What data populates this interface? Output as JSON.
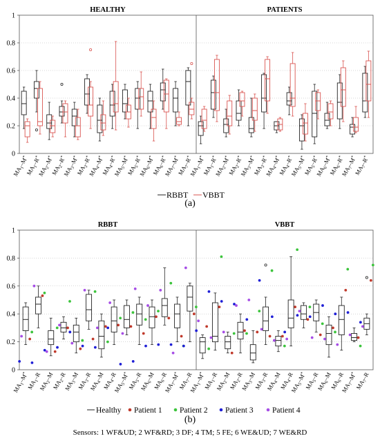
{
  "figure": {
    "sensors_note": "Sensors: 1 WF&UD; 2 WF&RD; 3 DF; 4 TM; 5 FE; 6 WE&UD; 7 WE&RD",
    "panel_a_label": "(a)",
    "panel_b_label": "(b)"
  },
  "colors": {
    "rbbt": "#222222",
    "vbbt": "#d9534f",
    "healthy": "#222222",
    "patient1": "#c0392b",
    "patient2": "#3cc43c",
    "patient3": "#1f1fd6",
    "patient4": "#a64de6",
    "grid": "#999999"
  },
  "chart_data": [
    {
      "type": "box",
      "panel": "a",
      "subplot_titles": [
        "HEALTHY",
        "PATIENTS"
      ],
      "ylim": [
        0,
        1
      ],
      "yticks": [
        "0",
        "0.2",
        "0.4",
        "0.6",
        "0.8",
        "1"
      ],
      "categories": [
        "MA1-M*",
        "MA1-R*",
        "MA2-M*",
        "MA2-R*",
        "MA3-M*",
        "MA3-R*",
        "MA4-M*",
        "MA4-R*",
        "MA5-M*",
        "MA5-R*",
        "MA6-M*",
        "MA6-R*",
        "MA7-M*",
        "MA7-R*"
      ],
      "legend": [
        "RBBT",
        "VBBT"
      ],
      "healthy": {
        "RBBT": [
          {
            "min": 0.18,
            "q1": 0.28,
            "med": 0.36,
            "q3": 0.45,
            "max": 0.48
          },
          {
            "min": 0.3,
            "q1": 0.4,
            "med": 0.47,
            "q3": 0.52,
            "max": 0.6,
            "out": [
              0.17
            ]
          },
          {
            "min": 0.1,
            "q1": 0.18,
            "med": 0.22,
            "q3": 0.28,
            "max": 0.37
          },
          {
            "min": 0.22,
            "q1": 0.27,
            "med": 0.3,
            "q3": 0.34,
            "max": 0.38,
            "out": [
              0.5
            ]
          },
          {
            "min": 0.12,
            "q1": 0.2,
            "med": 0.27,
            "q3": 0.32,
            "max": 0.37
          },
          {
            "min": 0.29,
            "q1": 0.35,
            "med": 0.43,
            "q3": 0.54,
            "max": 0.57
          },
          {
            "min": 0.09,
            "q1": 0.15,
            "med": 0.24,
            "q3": 0.35,
            "max": 0.4
          },
          {
            "min": 0.18,
            "q1": 0.27,
            "med": 0.35,
            "q3": 0.45,
            "max": 0.5
          },
          {
            "min": 0.25,
            "q1": 0.3,
            "med": 0.36,
            "q3": 0.46,
            "max": 0.5
          },
          {
            "min": 0.18,
            "q1": 0.32,
            "med": 0.4,
            "q3": 0.47,
            "max": 0.52
          },
          {
            "min": 0.18,
            "q1": 0.3,
            "med": 0.38,
            "q3": 0.45,
            "max": 0.5
          },
          {
            "min": 0.32,
            "q1": 0.38,
            "med": 0.46,
            "q3": 0.51,
            "max": 0.61
          },
          {
            "min": 0.2,
            "q1": 0.3,
            "med": 0.4,
            "q3": 0.47,
            "max": 0.52
          },
          {
            "min": 0.2,
            "q1": 0.35,
            "med": 0.52,
            "q3": 0.6,
            "max": 0.62
          }
        ],
        "VBBT": [
          {
            "min": 0.08,
            "q1": 0.12,
            "med": 0.2,
            "q3": 0.23,
            "max": 0.25
          },
          {
            "min": 0.14,
            "q1": 0.2,
            "med": 0.23,
            "q3": 0.47,
            "max": 0.52
          },
          {
            "min": 0.12,
            "q1": 0.15,
            "med": 0.2,
            "q3": 0.24,
            "max": 0.27
          },
          {
            "min": 0.12,
            "q1": 0.22,
            "med": 0.3,
            "q3": 0.36,
            "max": 0.38
          },
          {
            "min": 0.1,
            "q1": 0.12,
            "med": 0.2,
            "q3": 0.26,
            "max": 0.32
          },
          {
            "min": 0.18,
            "q1": 0.27,
            "med": 0.35,
            "q3": 0.48,
            "max": 0.52,
            "out": [
              0.75
            ]
          },
          {
            "min": 0.13,
            "q1": 0.17,
            "med": 0.22,
            "q3": 0.28,
            "max": 0.38
          },
          {
            "min": 0.17,
            "q1": 0.3,
            "med": 0.36,
            "q3": 0.52,
            "max": 0.81
          },
          {
            "min": 0.19,
            "q1": 0.25,
            "med": 0.3,
            "q3": 0.35,
            "max": 0.4
          },
          {
            "min": 0.27,
            "q1": 0.32,
            "med": 0.41,
            "q3": 0.47,
            "max": 0.59
          },
          {
            "min": 0.09,
            "q1": 0.18,
            "med": 0.26,
            "q3": 0.32,
            "max": 0.38
          },
          {
            "min": 0.18,
            "q1": 0.3,
            "med": 0.43,
            "q3": 0.53,
            "max": 0.54
          },
          {
            "min": 0.2,
            "q1": 0.21,
            "med": 0.23,
            "q3": 0.26,
            "max": 0.3
          },
          {
            "min": 0.25,
            "q1": 0.28,
            "med": 0.32,
            "q3": 0.37,
            "max": 0.4,
            "out": [
              0.65
            ]
          }
        ]
      },
      "patients": {
        "RBBT": [
          {
            "min": 0.07,
            "q1": 0.13,
            "med": 0.2,
            "q3": 0.23,
            "max": 0.27
          },
          {
            "min": 0.26,
            "q1": 0.32,
            "med": 0.44,
            "q3": 0.53,
            "max": 0.56
          },
          {
            "min": 0.12,
            "q1": 0.15,
            "med": 0.21,
            "q3": 0.25,
            "max": 0.32
          },
          {
            "min": 0.2,
            "q1": 0.24,
            "med": 0.29,
            "q3": 0.38,
            "max": 0.46
          },
          {
            "min": 0.12,
            "q1": 0.15,
            "med": 0.18,
            "q3": 0.26,
            "max": 0.4
          },
          {
            "min": 0.18,
            "q1": 0.3,
            "med": 0.4,
            "q3": 0.57,
            "max": 0.58
          },
          {
            "min": 0.15,
            "q1": 0.17,
            "med": 0.2,
            "q3": 0.23,
            "max": 0.23
          },
          {
            "min": 0.28,
            "q1": 0.35,
            "med": 0.38,
            "q3": 0.44,
            "max": 0.48
          },
          {
            "min": 0.03,
            "q1": 0.09,
            "med": 0.2,
            "q3": 0.25,
            "max": 0.28
          },
          {
            "min": 0.07,
            "q1": 0.12,
            "med": 0.29,
            "q3": 0.45,
            "max": 0.5
          },
          {
            "min": 0.18,
            "q1": 0.2,
            "med": 0.24,
            "q3": 0.29,
            "max": 0.37
          },
          {
            "min": 0.18,
            "q1": 0.25,
            "med": 0.37,
            "q3": 0.51,
            "max": 0.57
          },
          {
            "min": 0.12,
            "q1": 0.14,
            "med": 0.19,
            "q3": 0.21,
            "max": 0.26
          },
          {
            "min": 0.26,
            "q1": 0.3,
            "med": 0.38,
            "q3": 0.58,
            "max": 0.63
          }
        ],
        "VBBT": [
          {
            "min": 0.16,
            "q1": 0.18,
            "med": 0.24,
            "q3": 0.32,
            "max": 0.34
          },
          {
            "min": 0.23,
            "q1": 0.31,
            "med": 0.44,
            "q3": 0.68,
            "max": 0.71
          },
          {
            "min": 0.14,
            "q1": 0.2,
            "med": 0.27,
            "q3": 0.38,
            "max": 0.42
          },
          {
            "min": 0.27,
            "q1": 0.34,
            "med": 0.38,
            "q3": 0.44,
            "max": 0.45
          },
          {
            "min": 0.16,
            "q1": 0.24,
            "med": 0.31,
            "q3": 0.4,
            "max": 0.43
          },
          {
            "min": 0.29,
            "q1": 0.38,
            "med": 0.54,
            "q3": 0.68,
            "max": 0.7
          },
          {
            "min": 0.16,
            "q1": 0.17,
            "med": 0.21,
            "q3": 0.25,
            "max": 0.26
          },
          {
            "min": 0.27,
            "q1": 0.34,
            "med": 0.4,
            "q3": 0.65,
            "max": 0.73
          },
          {
            "min": 0.09,
            "q1": 0.14,
            "med": 0.22,
            "q3": 0.29,
            "max": 0.36
          },
          {
            "min": 0.25,
            "q1": 0.31,
            "med": 0.38,
            "q3": 0.44,
            "max": 0.46
          },
          {
            "min": 0.2,
            "q1": 0.25,
            "med": 0.3,
            "q3": 0.36,
            "max": 0.38
          },
          {
            "min": 0.23,
            "q1": 0.34,
            "med": 0.46,
            "q3": 0.62,
            "max": 0.67
          },
          {
            "min": 0.15,
            "q1": 0.16,
            "med": 0.19,
            "q3": 0.26,
            "max": 0.34
          },
          {
            "min": 0.26,
            "q1": 0.38,
            "med": 0.5,
            "q3": 0.67,
            "max": 0.74
          }
        ]
      }
    },
    {
      "type": "box",
      "panel": "b",
      "subplot_titles": [
        "RBBT",
        "VBBT"
      ],
      "ylim": [
        0,
        1
      ],
      "yticks": [
        "0",
        "0.2",
        "0.4",
        "0.6",
        "0.8",
        "1"
      ],
      "categories": [
        "MA1-M*",
        "MA1-R",
        "MA2-M",
        "MA2-R",
        "MA3-M",
        "MA3-R",
        "MA4-M",
        "MA4-R",
        "MA5-M*",
        "MA5-R",
        "MA6-M",
        "MA6-R",
        "MA7-M*",
        "MA7-R"
      ],
      "legend": [
        "Healthy",
        "Patient 1",
        "Patient 2",
        "Patient 3",
        "Patient 4"
      ],
      "RBBT": {
        "boxes": [
          {
            "min": 0.18,
            "q1": 0.28,
            "med": 0.36,
            "q3": 0.45,
            "max": 0.48
          },
          {
            "min": 0.3,
            "q1": 0.4,
            "med": 0.47,
            "q3": 0.52,
            "max": 0.6
          },
          {
            "min": 0.1,
            "q1": 0.18,
            "med": 0.22,
            "q3": 0.28,
            "max": 0.37
          },
          {
            "min": 0.22,
            "q1": 0.27,
            "med": 0.3,
            "q3": 0.34,
            "max": 0.38
          },
          {
            "min": 0.12,
            "q1": 0.2,
            "med": 0.27,
            "q3": 0.32,
            "max": 0.37
          },
          {
            "min": 0.29,
            "q1": 0.35,
            "med": 0.43,
            "q3": 0.54,
            "max": 0.57
          },
          {
            "min": 0.09,
            "q1": 0.15,
            "med": 0.24,
            "q3": 0.35,
            "max": 0.4
          },
          {
            "min": 0.18,
            "q1": 0.27,
            "med": 0.35,
            "q3": 0.45,
            "max": 0.5
          },
          {
            "min": 0.25,
            "q1": 0.3,
            "med": 0.36,
            "q3": 0.46,
            "max": 0.5
          },
          {
            "min": 0.18,
            "q1": 0.32,
            "med": 0.4,
            "q3": 0.47,
            "max": 0.52
          },
          {
            "min": 0.18,
            "q1": 0.3,
            "med": 0.38,
            "q3": 0.45,
            "max": 0.5
          },
          {
            "min": 0.32,
            "q1": 0.38,
            "med": 0.46,
            "q3": 0.51,
            "max": 0.73
          },
          {
            "min": 0.2,
            "q1": 0.3,
            "med": 0.4,
            "q3": 0.47,
            "max": 0.52
          },
          {
            "min": 0.2,
            "q1": 0.42,
            "med": 0.52,
            "q3": 0.6,
            "max": 0.62
          }
        ],
        "patients": [
          [
            0.22,
            0.27,
            0.06,
            0.24
          ],
          [
            0.53,
            0.55,
            0.05,
            0.6
          ],
          [
            0.13,
            0.3,
            0.14,
            0.13
          ],
          [
            0.3,
            0.49,
            0.16,
            0.32
          ],
          [
            0.15,
            0.21,
            0.27,
            0.19
          ],
          [
            0.22,
            0.56,
            0.17,
            0.57
          ],
          [
            0.31,
            0.2,
            0.16,
            0.3
          ],
          [
            0.32,
            0.37,
            0.3,
            0.48
          ],
          [
            0.31,
            0.41,
            0.04,
            0.26
          ],
          [
            0.26,
            0.36,
            0.06,
            0.58
          ],
          [
            0.38,
            0.42,
            0.17,
            0.46
          ],
          [
            0.37,
            0.62,
            0.18,
            0.57
          ],
          [
            0.24,
            0.17,
            0.18,
            0.12
          ],
          [
            0.4,
            0.45,
            0.17,
            0.73
          ]
        ]
      },
      "VBBT": {
        "boxes": [
          {
            "min": 0.08,
            "q1": 0.12,
            "med": 0.2,
            "q3": 0.23,
            "max": 0.25
          },
          {
            "min": 0.14,
            "q1": 0.2,
            "med": 0.24,
            "q3": 0.48,
            "max": 0.55
          },
          {
            "min": 0.12,
            "q1": 0.15,
            "med": 0.2,
            "q3": 0.24,
            "max": 0.27
          },
          {
            "min": 0.12,
            "q1": 0.22,
            "med": 0.27,
            "q3": 0.34,
            "max": 0.4
          },
          {
            "min": 0.05,
            "q1": 0.07,
            "med": 0.12,
            "q3": 0.18,
            "max": 0.28
          },
          {
            "min": 0.18,
            "q1": 0.28,
            "med": 0.35,
            "q3": 0.45,
            "max": 0.52
          },
          {
            "min": 0.13,
            "q1": 0.17,
            "med": 0.21,
            "q3": 0.24,
            "max": 0.28
          },
          {
            "min": 0.17,
            "q1": 0.3,
            "med": 0.37,
            "q3": 0.5,
            "max": 0.81
          },
          {
            "min": 0.3,
            "q1": 0.36,
            "med": 0.4,
            "q3": 0.46,
            "max": 0.48
          },
          {
            "min": 0.27,
            "q1": 0.35,
            "med": 0.41,
            "q3": 0.47,
            "max": 0.5
          },
          {
            "min": 0.09,
            "q1": 0.18,
            "med": 0.26,
            "q3": 0.32,
            "max": 0.38
          },
          {
            "min": 0.14,
            "q1": 0.25,
            "med": 0.36,
            "q3": 0.46,
            "max": 0.52
          },
          {
            "min": 0.2,
            "q1": 0.21,
            "med": 0.23,
            "q3": 0.26,
            "max": 0.3
          },
          {
            "min": 0.25,
            "q1": 0.29,
            "med": 0.33,
            "q3": 0.37,
            "max": 0.4
          }
        ],
        "healthy_outliers": [
          null,
          null,
          null,
          null,
          null,
          0.75,
          null,
          null,
          null,
          null,
          null,
          null,
          null,
          0.66
        ],
        "patients": [
          [
            0.31,
            0.15,
            0.28,
            0.35
          ],
          [
            0.45,
            0.81,
            0.56,
            0.23
          ],
          [
            0.12,
            0.26,
            0.49,
            0.27
          ],
          [
            0.28,
            0.26,
            0.47,
            0.46
          ],
          [
            0.27,
            0.42,
            0.36,
            0.5
          ],
          [
            0.24,
            0.71,
            0.64,
            0.29
          ],
          [
            0.24,
            0.17,
            0.38,
            0.21
          ],
          [
            0.45,
            0.86,
            0.27,
            0.22
          ],
          [
            0.36,
            0.45,
            0.39,
            0.42
          ],
          [
            0.25,
            0.33,
            0.38,
            0.23
          ],
          [
            0.3,
            0.27,
            0.46,
            0.22
          ],
          [
            0.57,
            0.72,
            0.4,
            0.18
          ],
          [
            0.23,
            0.17,
            0.41,
            0.25
          ],
          [
            0.64,
            0.75,
            0.34,
            0.31
          ]
        ]
      }
    }
  ]
}
